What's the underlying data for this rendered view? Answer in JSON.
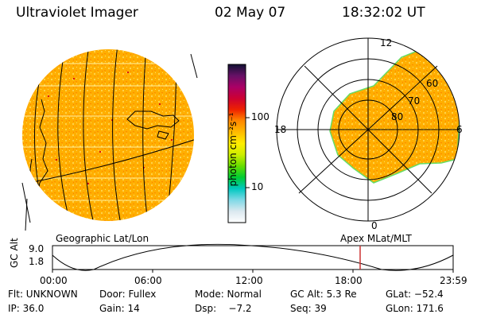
{
  "header": {
    "instrument": "Ultraviolet Imager",
    "date": "02 May 07",
    "time": "18:32:02 UT"
  },
  "colorbar": {
    "unit_label": "photon cm⁻²s⁻¹",
    "ticks": [
      "100",
      "10"
    ],
    "scale": "log",
    "stops": [
      "#ffffff",
      "#dbe8ef",
      "#7fd9e6",
      "#00c8c0",
      "#00cc33",
      "#66dd00",
      "#ccee00",
      "#ffee00",
      "#ffbb00",
      "#ff8800",
      "#ee2200",
      "#cc0033",
      "#aa0066",
      "#661166",
      "#111133"
    ]
  },
  "polar_plot": {
    "labels": [
      "12",
      "18",
      "6",
      "0",
      "80",
      "70",
      "60"
    ]
  },
  "timeline": {
    "left_title": "Geographic Lat/Lon",
    "right_title": "Apex  MLat/MLT",
    "axis_label": "GC Alt",
    "y_ticks": [
      "9.0",
      "1.8"
    ],
    "x_ticks": [
      "00:00",
      "06:00",
      "12:00",
      "18:00",
      "23:59"
    ],
    "marker_time": "18:32",
    "marker_color": "#cc3333"
  },
  "info": {
    "flt": "Flt: UNKNOWN",
    "door": "Door: Fullex",
    "mode": "Mode: Normal",
    "gc_alt": "GC Alt: 5.3 Re",
    "glat": "GLat: −52.4",
    "ip": "IP: 36.0",
    "gain": "Gain: 14",
    "dsp": "Dsp:    −7.2",
    "seq": "Seq: 39",
    "glon": "GLon: 171.6"
  }
}
